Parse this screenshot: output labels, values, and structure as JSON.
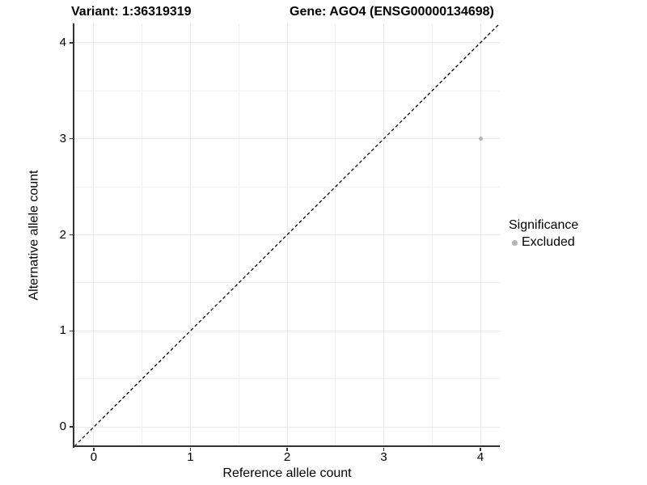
{
  "header": {
    "variant_title": "Variant: 1:36319319",
    "gene_title": "Gene: AGO4 (ENSG00000134698)"
  },
  "axes": {
    "x": {
      "label": "Reference allele count",
      "tick_labels": [
        "0",
        "1",
        "2",
        "3",
        "4"
      ]
    },
    "y": {
      "label": "Alternative allele count",
      "tick_labels": [
        "0",
        "1",
        "2",
        "3",
        "4"
      ]
    }
  },
  "legend": {
    "title": "Significance",
    "items": [
      {
        "label": "Excluded",
        "marker": "circle",
        "color": "#b4b4b4"
      }
    ]
  },
  "chart_data": {
    "type": "scatter",
    "title": "Variant: 1:36319319 | Gene: AGO4 (ENSG00000134698)",
    "xlabel": "Reference allele count",
    "ylabel": "Alternative allele count",
    "xlim": [
      -0.2,
      4.2
    ],
    "ylim": [
      -0.2,
      4.2
    ],
    "x_ticks": [
      0,
      1,
      2,
      3,
      4
    ],
    "y_ticks": [
      0,
      1,
      2,
      3,
      4
    ],
    "grid": "major+minor",
    "minor_grid_step": 0.5,
    "legend_position": "right",
    "series": [
      {
        "name": "Excluded",
        "color": "#b4b4b4",
        "marker_size_px": 5,
        "points": [
          {
            "x": 4,
            "y": 3
          }
        ]
      }
    ],
    "reference_line": {
      "kind": "identity y=x",
      "style": "dashed",
      "color": "#000000",
      "from": [
        -0.2,
        -0.2
      ],
      "to": [
        4.2,
        4.2
      ]
    }
  },
  "style": {
    "background": "#ffffff",
    "axis_line_color": "#333333",
    "gridline_color": "#e9e9e9",
    "minor_gridline_color": "#f0f0f0",
    "text_color": "#000000"
  }
}
